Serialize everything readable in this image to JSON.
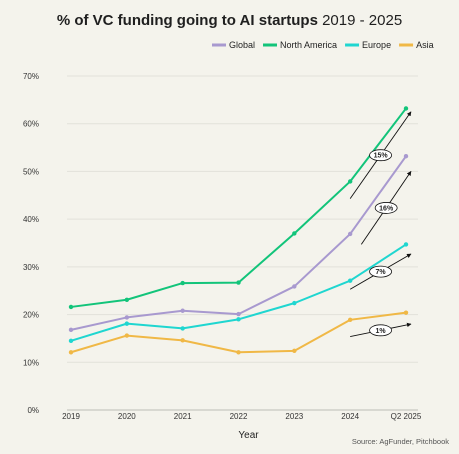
{
  "chart_data": {
    "type": "line",
    "title": "% of VC funding going to AI startups",
    "title_years": "2019 - 2025",
    "xlabel": "Year",
    "ylabel": "",
    "categories": [
      "2019",
      "2020",
      "2021",
      "2022",
      "2023",
      "2024",
      "Q2 2025"
    ],
    "y_ticks": [
      "0%",
      "10%",
      "20%",
      "30%",
      "40%",
      "50%",
      "60%",
      "70%"
    ],
    "ylim": [
      0,
      70
    ],
    "grid": true,
    "legend_position": "top-right",
    "series": [
      {
        "name": "Global",
        "color": "#a899cf",
        "values": [
          16.8,
          19.4,
          20.8,
          20.1,
          25.9,
          36.9,
          53.2
        ]
      },
      {
        "name": "North America",
        "color": "#12c47a",
        "values": [
          21.6,
          23.1,
          26.6,
          26.7,
          37.0,
          47.9,
          63.2
        ]
      },
      {
        "name": "Europe",
        "color": "#1fd6d0",
        "values": [
          14.5,
          18.1,
          17.1,
          19.0,
          22.4,
          27.1,
          34.7
        ]
      },
      {
        "name": "Asia",
        "color": "#f0b846",
        "values": [
          12.1,
          15.6,
          14.6,
          12.1,
          12.4,
          18.9,
          20.4
        ]
      }
    ],
    "annotations": [
      {
        "label": "15%",
        "series": "North America",
        "from": [
          5.0,
          44.3
        ],
        "to": [
          6.0,
          62.5
        ]
      },
      {
        "label": "16%",
        "series": "Global",
        "from": [
          5.2,
          34.7
        ],
        "to": [
          6.0,
          50.0
        ]
      },
      {
        "label": "7%",
        "series": "Europe",
        "from": [
          5.0,
          25.3
        ],
        "to": [
          6.0,
          32.7
        ]
      },
      {
        "label": "1%",
        "series": "Asia",
        "from": [
          5.0,
          15.4
        ],
        "to": [
          6.0,
          18.0
        ]
      }
    ],
    "source": "Source: AgFunder, Pitchbook"
  }
}
